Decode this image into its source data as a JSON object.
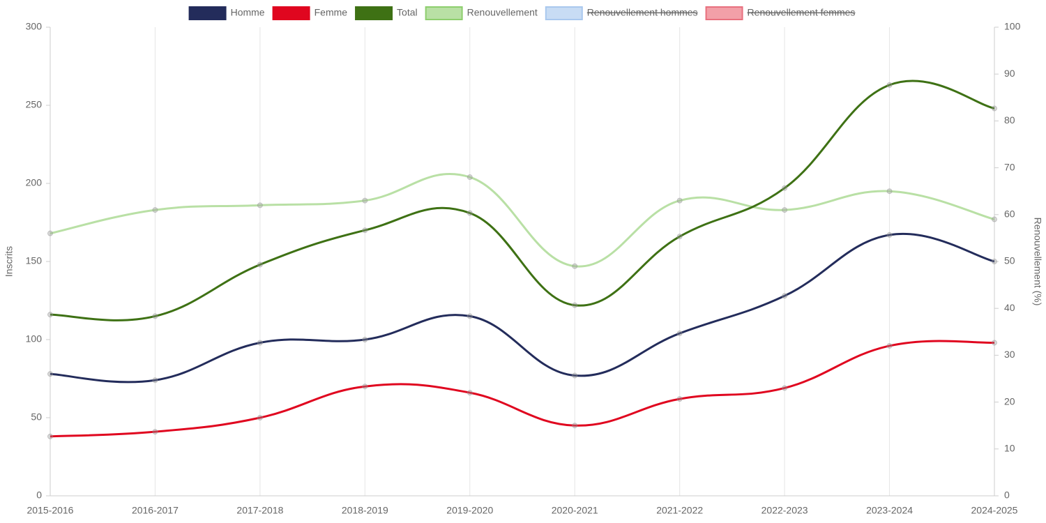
{
  "chart_data": {
    "type": "line",
    "categories": [
      "2015-2016",
      "2016-2017",
      "2017-2018",
      "2018-2019",
      "2019-2020",
      "2020-2021",
      "2021-2022",
      "2022-2023",
      "2023-2024",
      "2024-2025"
    ],
    "series": [
      {
        "name": "Homme",
        "color": "#232c5b",
        "values": [
          78,
          74,
          98,
          100,
          115,
          77,
          104,
          128,
          167,
          150
        ]
      },
      {
        "name": "Femme",
        "color": "#e0061f",
        "values": [
          38,
          41,
          50,
          70,
          66,
          45,
          62,
          69,
          96,
          98
        ]
      },
      {
        "name": "Total",
        "color": "#3e7114",
        "values": [
          116,
          115,
          148,
          170,
          181,
          122,
          166,
          197,
          263,
          248
        ]
      },
      {
        "name": "Renouvellement",
        "color": "#b9e0a5",
        "axis": "y2",
        "values": [
          56,
          61,
          62,
          63,
          68,
          49,
          63,
          61,
          65,
          59
        ]
      },
      {
        "name": "Renouvellement hommes",
        "color": "#c8dcf4",
        "axis": "y2",
        "hidden": true,
        "values": [
          null,
          null,
          null,
          null,
          null,
          null,
          null,
          null,
          null,
          null
        ]
      },
      {
        "name": "Renouvellement femmes",
        "color": "#f2a0a8",
        "axis": "y2",
        "hidden": true,
        "values": [
          null,
          null,
          null,
          null,
          null,
          null,
          null,
          null,
          null,
          null
        ]
      }
    ],
    "y_label": "Inscrits",
    "y2_label": "Renouvellement (%)",
    "ylim": [
      0,
      300
    ],
    "yticks": [
      0,
      50,
      100,
      150,
      200,
      250,
      300
    ],
    "y2lim": [
      0,
      100
    ],
    "y2ticks": [
      0,
      10,
      20,
      30,
      40,
      50,
      60,
      70,
      80,
      90,
      100
    ],
    "grid": "x",
    "legend": "top"
  }
}
